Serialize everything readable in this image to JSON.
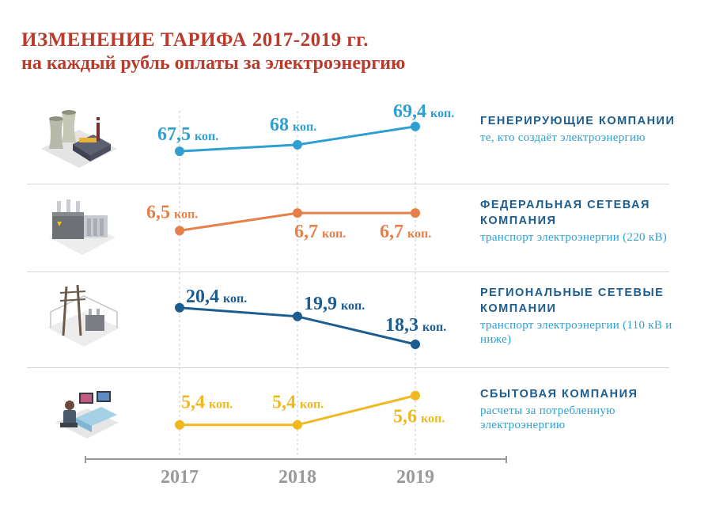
{
  "title": {
    "line1": "ИЗМЕНЕНИЕ ТАРИФА 2017-2019 гг.",
    "line2": "на каждый рубль оплаты за электроэнергию"
  },
  "colors": {
    "title": "#b83b2c",
    "generating": "#2e9fd0",
    "federal": "#e5804a",
    "regional": "#1d5c8f",
    "sales": "#f0b81f",
    "axis": "#999999"
  },
  "rows": [
    {
      "key": "generating",
      "name": "ГЕНЕРИРУЮЩИЕ КОМПАНИИ",
      "desc": "те, кто создаёт электроэнергию",
      "icon": "power-plant-icon"
    },
    {
      "key": "federal",
      "name": "ФЕДЕРАЛЬНАЯ СЕТЕВАЯ КОМПАНИЯ",
      "desc": "транспорт электроэнергии (220 кВ)",
      "icon": "transformer-icon"
    },
    {
      "key": "regional",
      "name": "РЕГИОНАЛЬНЫЕ СЕТЕВЫЕ КОМПАНИИ",
      "desc": "транспорт электроэнергии (110 кВ и ниже)",
      "icon": "substation-icon"
    },
    {
      "key": "sales",
      "name": "СБЫТОВАЯ КОМПАНИЯ",
      "desc": "расчеты за потребленную электроэнергию",
      "icon": "operator-desk-icon"
    }
  ],
  "chart_data": {
    "type": "line",
    "x": [
      "2017",
      "2018",
      "2019"
    ],
    "unit": "коп.",
    "series": [
      {
        "name": "ГЕНЕРИРУЮЩИЕ КОМПАНИИ",
        "values": [
          67.5,
          68,
          69.4
        ],
        "labels": [
          "67,5",
          "68",
          "69,4"
        ],
        "ylim": [
          66.6,
          70.6
        ]
      },
      {
        "name": "ФЕДЕРАЛЬНАЯ СЕТЕВАЯ КОМПАНИЯ",
        "values": [
          6.5,
          6.7,
          6.7
        ],
        "labels": [
          "6,5",
          "6,7",
          "6,7"
        ],
        "ylim": [
          6.35,
          6.8
        ]
      },
      {
        "name": "РЕГИОНАЛЬНЫЕ СЕТЕВЫЕ КОМПАНИИ",
        "values": [
          20.4,
          19.9,
          18.3
        ],
        "labels": [
          "20,4",
          "19,9",
          "18,3"
        ],
        "ylim": [
          17.8,
          20.8
        ]
      },
      {
        "name": "СБЫТОВАЯ КОМПАНИЯ",
        "values": [
          5.4,
          5.4,
          5.6
        ],
        "labels": [
          "5,4",
          "5,4",
          "5,6"
        ],
        "ylim": [
          5.35,
          5.62
        ]
      }
    ]
  }
}
